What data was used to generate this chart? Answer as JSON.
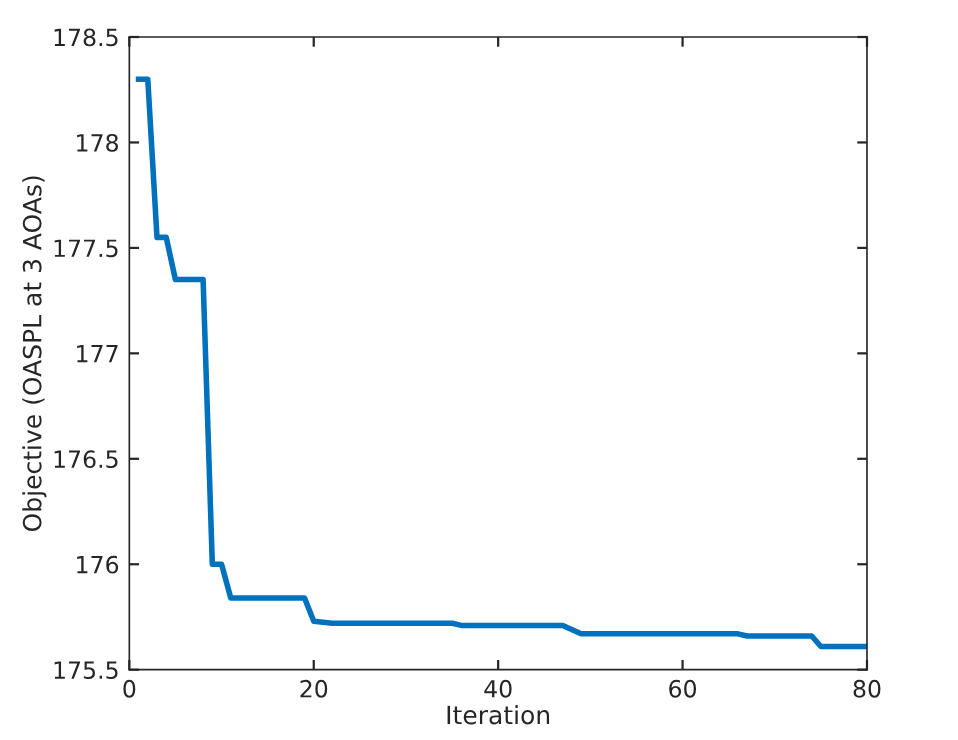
{
  "chart_data": {
    "type": "line",
    "xlabel": "Iteration",
    "ylabel": "Objective (OASPL at 3 AOAs)",
    "x": [
      1,
      2,
      3,
      4,
      5,
      8,
      9,
      10,
      11,
      19,
      20,
      22,
      35,
      36,
      47,
      49,
      66,
      67,
      74,
      75,
      80
    ],
    "series": [
      {
        "color": "#0072bd",
        "values": [
          178.3,
          178.3,
          177.55,
          177.55,
          177.35,
          177.35,
          176.0,
          176.0,
          175.84,
          175.84,
          175.73,
          175.72,
          175.72,
          175.71,
          175.71,
          175.67,
          175.67,
          175.66,
          175.66,
          175.61,
          175.61
        ]
      }
    ],
    "xlim": [
      0,
      80
    ],
    "xticks": [
      0,
      20,
      40,
      60,
      80
    ],
    "ylim": [
      175.5,
      178.5
    ],
    "yticks": [
      175.5,
      176,
      176.5,
      177,
      177.5,
      178,
      178.5
    ],
    "grid": false,
    "legend": false,
    "marker": "none",
    "line_style": "solid"
  }
}
